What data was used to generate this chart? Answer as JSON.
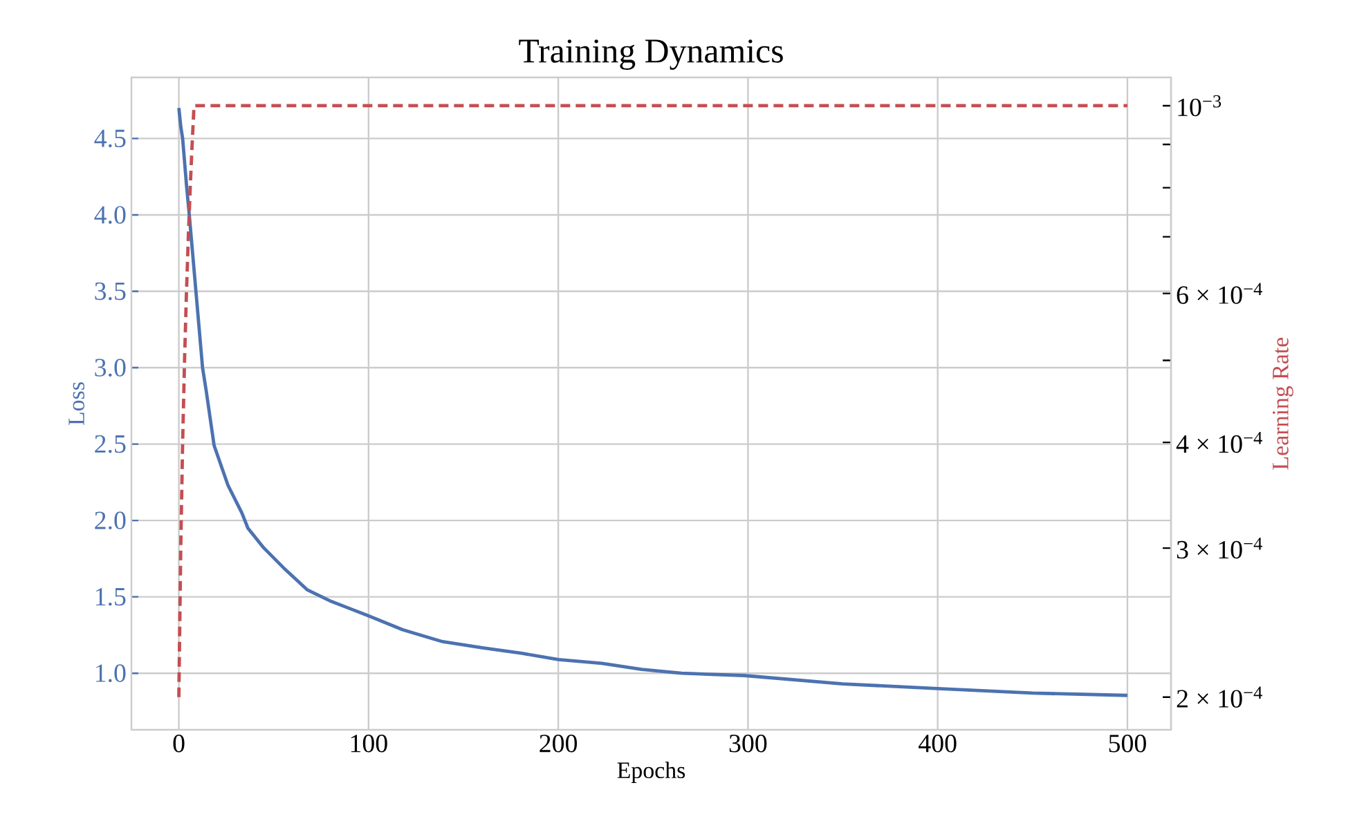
{
  "chart_data": {
    "type": "line",
    "title": "Training Dynamics",
    "xlabel": "Epochs",
    "ylabel": "Loss",
    "y2label": "Learning Rate",
    "xlim": [
      -25,
      523
    ],
    "ylim": [
      0.63,
      4.9
    ],
    "y2lim": [
      0.000183,
      0.00108
    ],
    "log": "y2",
    "grid": true,
    "xticks": [
      0,
      100,
      200,
      300,
      400,
      500
    ],
    "yticks": [
      {
        "value": 1.0,
        "label": "1.0"
      },
      {
        "value": 1.5,
        "label": "1.5"
      },
      {
        "value": 2.0,
        "label": "2.0"
      },
      {
        "value": 2.5,
        "label": "2.5"
      },
      {
        "value": 3.0,
        "label": "3.0"
      },
      {
        "value": 3.5,
        "label": "3.5"
      },
      {
        "value": 4.0,
        "label": "4.0"
      },
      {
        "value": 4.5,
        "label": "4.5"
      }
    ],
    "y2ticks": [
      {
        "value": 0.0002,
        "label": "2 × 10$^{−4}$"
      },
      {
        "value": 0.0003,
        "label": "3 × 10$^{−4}$"
      },
      {
        "value": 0.0004,
        "label": "4 × 10$^{−4}$"
      },
      {
        "value": 0.0005,
        "label": null
      },
      {
        "value": 0.0006,
        "label": "6 × 10$^{−4}$"
      },
      {
        "value": 0.0007,
        "label": null
      },
      {
        "value": 0.0008,
        "label": null
      },
      {
        "value": 0.0009,
        "label": null
      },
      {
        "value": 0.001,
        "label": "10$^{−3}$"
      }
    ],
    "series": [
      {
        "color": "#4c72b0",
        "line_style": "solid",
        "x": [
          0,
          1,
          2,
          4,
          5.5,
          9,
          12.5,
          14.4,
          18.6,
          25.9,
          33.2,
          36.4,
          44.8,
          55.2,
          67.8,
          80.4,
          99.2,
          118,
          139,
          160,
          181,
          200,
          223,
          244,
          265,
          298,
          350,
          400,
          450,
          500
        ],
        "values": [
          4.7,
          4.58,
          4.5,
          4.2,
          4.0,
          3.5,
          3.0,
          2.85,
          2.49,
          2.23,
          2.05,
          1.95,
          1.82,
          1.69,
          1.545,
          1.47,
          1.38,
          1.285,
          1.207,
          1.167,
          1.13,
          1.09,
          1.065,
          1.025,
          1.0,
          0.985,
          0.93,
          0.9,
          0.87,
          0.855
        ]
      },
      {
        "color": "#c44e52",
        "line_style": "dashed",
        "axis": "y2",
        "x": [
          0,
          1,
          2,
          3,
          4,
          5,
          6,
          7,
          8,
          500
        ],
        "values": [
          0.0002,
          0.0003,
          0.0004,
          0.0005,
          0.0006,
          0.0007,
          0.0008,
          0.0009,
          0.001,
          0.001
        ]
      }
    ]
  }
}
